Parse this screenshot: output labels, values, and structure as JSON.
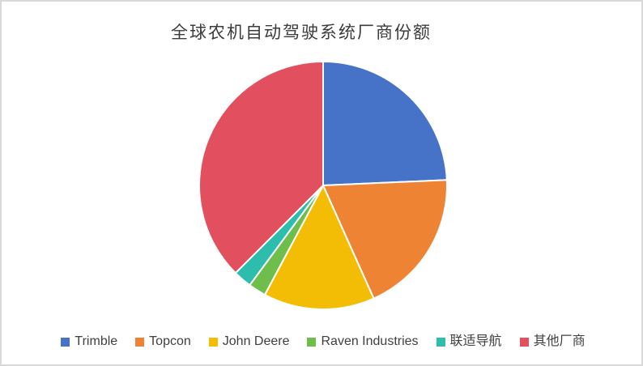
{
  "window": {
    "background_color": "#ffffff",
    "frame_color": "#d9d9d9"
  },
  "title": {
    "text": "全球农机自动驾驶系统厂商份额",
    "color": "#3b3b3b"
  },
  "chart_data": {
    "type": "pie",
    "title": "全球农机自动驾驶系统厂商份额",
    "unit": "percent_share",
    "start_angle_deg": 0,
    "direction": "clockwise",
    "legend_position": "bottom",
    "slice_separator_color": "#ffffff",
    "slices": [
      {
        "label": "Trimble",
        "value": 24.3,
        "color": "#4673C8"
      },
      {
        "label": "Topcon",
        "value": 19.0,
        "color": "#ED8333"
      },
      {
        "label": "John Deere",
        "value": 14.5,
        "color": "#F3BD06"
      },
      {
        "label": "Raven Industries",
        "value": 2.3,
        "color": "#6FBE4B"
      },
      {
        "label": "联适导航",
        "value": 2.4,
        "color": "#2CBDAC"
      },
      {
        "label": "其他厂商",
        "value": 37.5,
        "color": "#E2505F"
      }
    ]
  }
}
